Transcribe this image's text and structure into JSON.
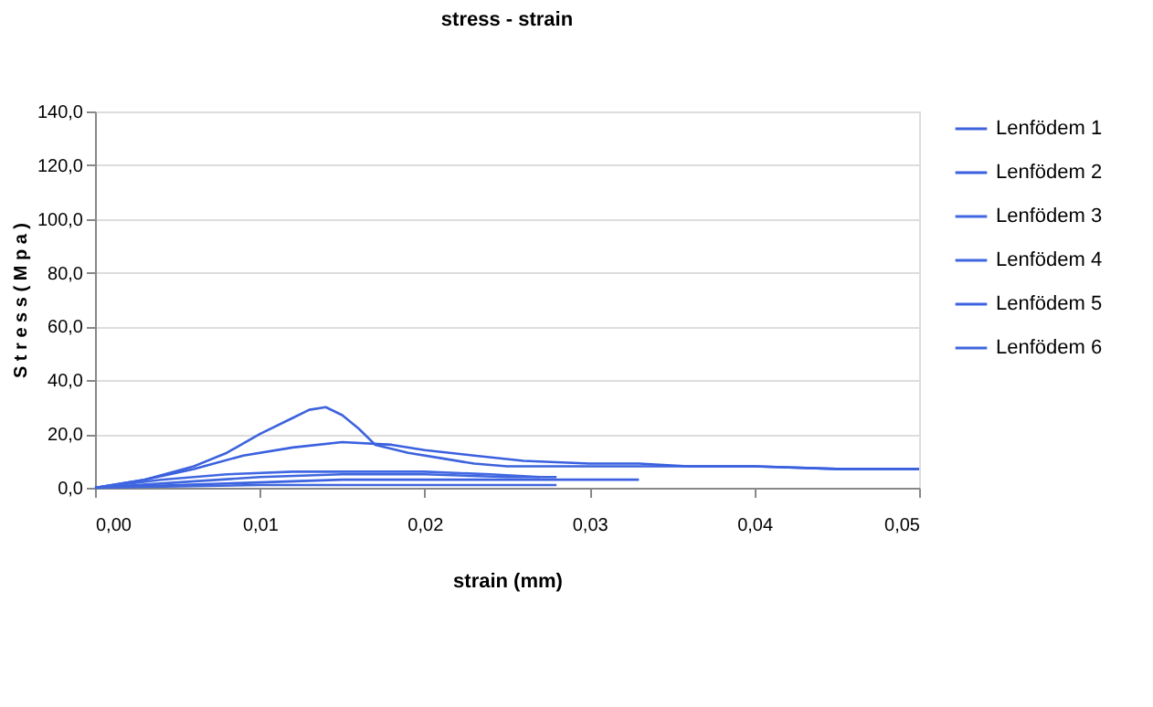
{
  "chart_data": {
    "type": "line",
    "title": "stress - strain",
    "xlabel": "strain (mm)",
    "ylabel": "S t r e s s  ( M p a )",
    "xlim": [
      0,
      0.05
    ],
    "xticks": [
      {
        "value": 0,
        "label": "0,00"
      },
      {
        "value": 0.01,
        "label": "0,01"
      },
      {
        "value": 0.02,
        "label": "0,02"
      },
      {
        "value": 0.03,
        "label": "0,03"
      },
      {
        "value": 0.04,
        "label": "0,04"
      },
      {
        "value": 0.05,
        "label": "0,05"
      }
    ],
    "ylim": [
      0,
      140
    ],
    "yticks": [
      {
        "value": 0,
        "label": "0,0"
      },
      {
        "value": 20,
        "label": "20,0"
      },
      {
        "value": 40,
        "label": "40,0"
      },
      {
        "value": 60,
        "label": "60,0"
      },
      {
        "value": 80,
        "label": "80,0"
      },
      {
        "value": 100,
        "label": "100,0"
      },
      {
        "value": 120,
        "label": "120,0"
      },
      {
        "value": 140,
        "label": "140,0"
      }
    ],
    "grid": "y",
    "legend": "right",
    "line_style": "solid",
    "marker": "none",
    "series": [
      {
        "name": "Lenfödem 1",
        "color": "#3d63dd",
        "x": [
          0,
          0.003,
          0.006,
          0.008,
          0.01,
          0.012,
          0.013,
          0.014,
          0.015,
          0.016,
          0.017,
          0.019,
          0.021,
          0.023,
          0.025,
          0.027,
          0.03,
          0.033,
          0.04,
          0.045,
          0.05
        ],
        "values": [
          0,
          3,
          8,
          13,
          20,
          26,
          29,
          30,
          27,
          22,
          16,
          13,
          11,
          9,
          8,
          8,
          8,
          8,
          8,
          7,
          7
        ]
      },
      {
        "name": "Lenfödem 2",
        "color": "#3a60e0",
        "x": [
          0,
          0.003,
          0.006,
          0.009,
          0.012,
          0.015,
          0.018,
          0.02,
          0.023,
          0.026,
          0.03,
          0.033,
          0.036,
          0.04,
          0.045,
          0.05
        ],
        "values": [
          0,
          3,
          7,
          12,
          15,
          17,
          16,
          14,
          12,
          10,
          9,
          9,
          8,
          8,
          7,
          7
        ]
      },
      {
        "name": "Lenfödem 3",
        "color": "#4168e2",
        "x": [
          0,
          0.004,
          0.008,
          0.012,
          0.016,
          0.02,
          0.024,
          0.027
        ],
        "values": [
          0,
          3,
          5,
          6,
          6,
          6,
          5,
          4
        ]
      },
      {
        "name": "Lenfödem 4",
        "color": "#3f66df",
        "x": [
          0,
          0.005,
          0.01,
          0.015,
          0.02,
          0.025,
          0.028
        ],
        "values": [
          0,
          2,
          4,
          5,
          5,
          4,
          4
        ]
      },
      {
        "name": "Lenfödem 5",
        "color": "#3c62e1",
        "x": [
          0,
          0.005,
          0.01,
          0.015,
          0.02,
          0.025,
          0.03,
          0.033
        ],
        "values": [
          0,
          1,
          2,
          3,
          3,
          3,
          3,
          3
        ]
      },
      {
        "name": "Lenfödem 6",
        "color": "#4067dc",
        "x": [
          0,
          0.01,
          0.02,
          0.028
        ],
        "values": [
          0,
          1,
          1,
          1
        ]
      }
    ]
  }
}
